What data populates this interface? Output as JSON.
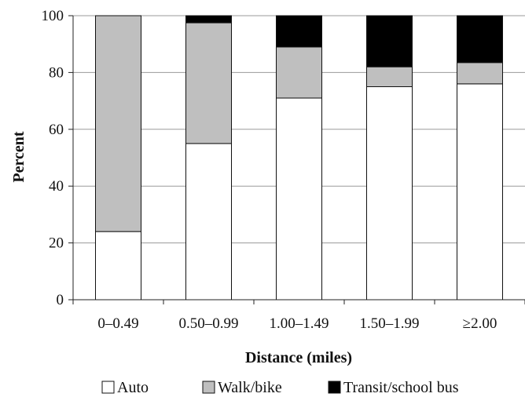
{
  "chart_data": {
    "type": "bar",
    "stacked": true,
    "title": "",
    "xlabel": "Distance (miles)",
    "ylabel": "Percent",
    "ylim": [
      0,
      100
    ],
    "yticks": [
      0,
      20,
      40,
      60,
      80,
      100
    ],
    "grid": "horizontal",
    "legend_position": "bottom",
    "categories": [
      "0–0.49",
      "0.50–0.99",
      "1.00–1.49",
      "1.50–1.99",
      "≥2.00"
    ],
    "series": [
      {
        "name": "Auto",
        "color": "#ffffff",
        "values": [
          24,
          55,
          71,
          75,
          76
        ]
      },
      {
        "name": "Walk/bike",
        "color": "#bfbfbf",
        "values": [
          76,
          42.5,
          18,
          7,
          7.5
        ]
      },
      {
        "name": "Transit/school bus",
        "color": "#000000",
        "values": [
          0,
          2.5,
          11,
          18,
          16.5
        ]
      }
    ]
  }
}
